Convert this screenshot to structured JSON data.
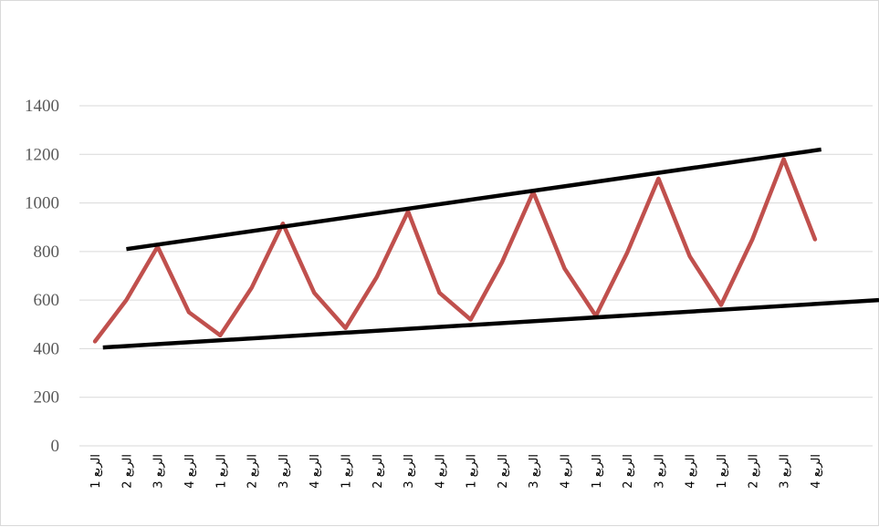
{
  "chart_data": {
    "type": "line",
    "title": "",
    "xlabel": "",
    "ylabel": "",
    "ylim": [
      0,
      1400
    ],
    "yticks": [
      0,
      200,
      400,
      600,
      800,
      1000,
      1200,
      1400
    ],
    "grid": true,
    "legend": "none",
    "categories": [
      "الربع 1",
      "الربع 2",
      "الربع 3",
      "الربع 4",
      "الربع 1",
      "الربع 2",
      "الربع 3",
      "الربع 4",
      "الربع 1",
      "الربع 2",
      "الربع 3",
      "الربع 4",
      "الربع 1",
      "الربع 2",
      "الربع 3",
      "الربع 4",
      "الربع 1",
      "الربع 2",
      "الربع 3",
      "الربع 4",
      "الربع 1",
      "الربع 2",
      "الربع 3",
      "الربع 4"
    ],
    "series": [
      {
        "color": "#c0504d",
        "values": [
          430,
          600,
          820,
          550,
          455,
          650,
          915,
          630,
          485,
          695,
          965,
          630,
          520,
          755,
          1045,
          730,
          535,
          795,
          1100,
          780,
          580,
          850,
          1180,
          850
        ]
      }
    ],
    "trendlines": [
      {
        "color": "#000000",
        "from": {
          "x": 1,
          "y": 810
        },
        "to": {
          "x": 23.2,
          "y": 1220
        }
      },
      {
        "color": "#000000",
        "from": {
          "x": 0.25,
          "y": 405
        },
        "to": {
          "x": 26,
          "y": 600
        }
      }
    ]
  }
}
